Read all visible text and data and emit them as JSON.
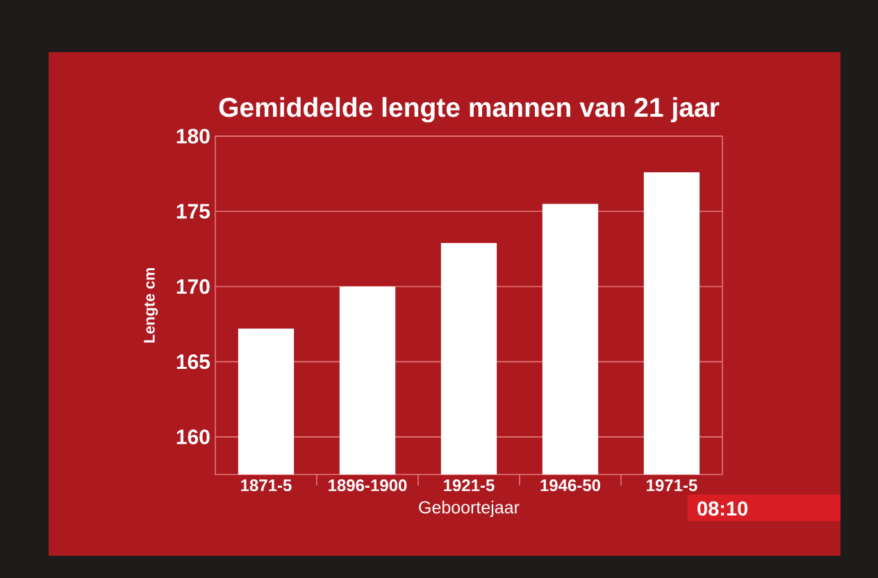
{
  "chart_data": {
    "type": "bar",
    "title": "Gemiddelde lengte mannen van 21 jaar",
    "xlabel": "Geboortejaar",
    "ylabel": "Lengte cm",
    "categories": [
      "1871-5",
      "1896-1900",
      "1921-5",
      "1946-50",
      "1971-5"
    ],
    "values": [
      167.2,
      170.0,
      172.9,
      175.5,
      177.6
    ],
    "color": "#ffffff",
    "ylim": [
      157.5,
      180
    ],
    "yticks": [
      160,
      165,
      170,
      175,
      180
    ],
    "grid": "y",
    "annotations": [
      "08:10"
    ]
  }
}
